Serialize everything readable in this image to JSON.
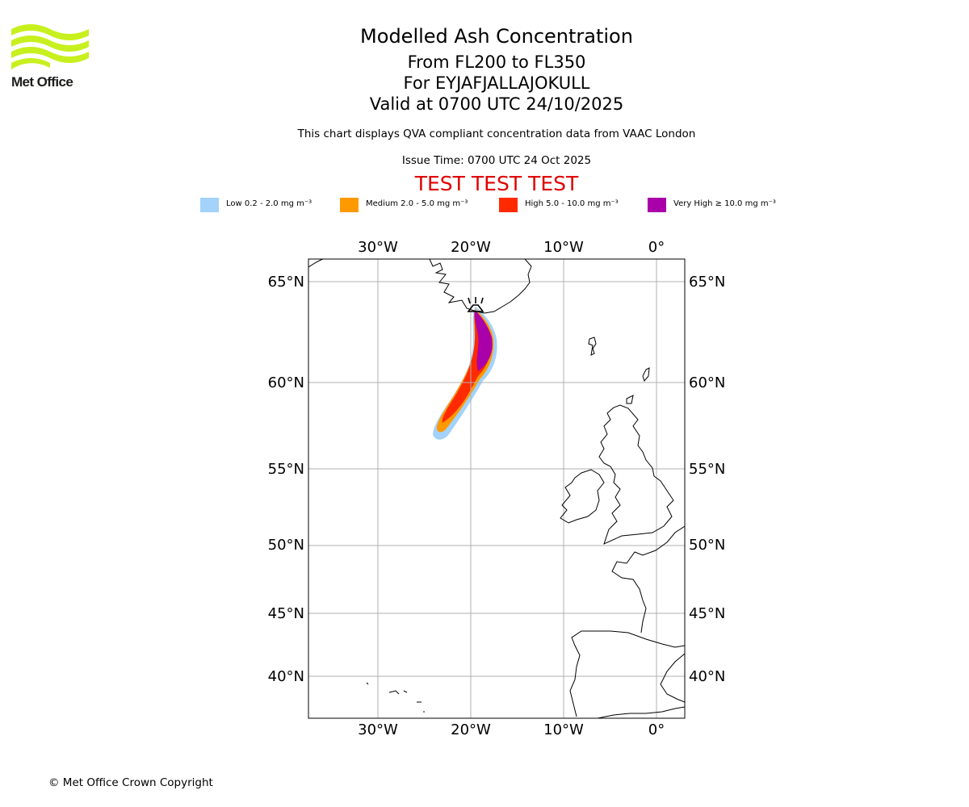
{
  "logo": {
    "text": "Met Office",
    "color": "#c8f01e"
  },
  "header": {
    "title": "Modelled Ash Concentration",
    "level_range": "From FL200 to FL350",
    "volcano": "For EYJAFJALLAJOKULL",
    "valid_time": "Valid at 0700 UTC 24/10/2025",
    "description": "This chart displays QVA compliant concentration data from VAAC London",
    "issue_time": "Issue Time: 0700 UTC 24 Oct 2025",
    "test_banner": "TEST TEST TEST"
  },
  "legend": [
    {
      "label": "Low 0.2 - 2.0 mg m⁻³",
      "color": "#a3d2fb"
    },
    {
      "label": "Medium 2.0 - 5.0 mg m⁻³",
      "color": "#ff9900"
    },
    {
      "label": "High 5.0 - 10.0 mg m⁻³",
      "color": "#ff2a00"
    },
    {
      "label": "Very High ≥ 10.0 mg m⁻³",
      "color": "#aa00aa"
    }
  ],
  "map": {
    "lon_ticks": [
      "30°W",
      "20°W",
      "10°W",
      "0°"
    ],
    "lat_ticks": [
      "65°N",
      "60°N",
      "55°N",
      "50°N",
      "45°N",
      "40°N"
    ],
    "grid_color": "#b0b0b0"
  },
  "footer": {
    "copyright": "© Met Office Crown Copyright"
  }
}
